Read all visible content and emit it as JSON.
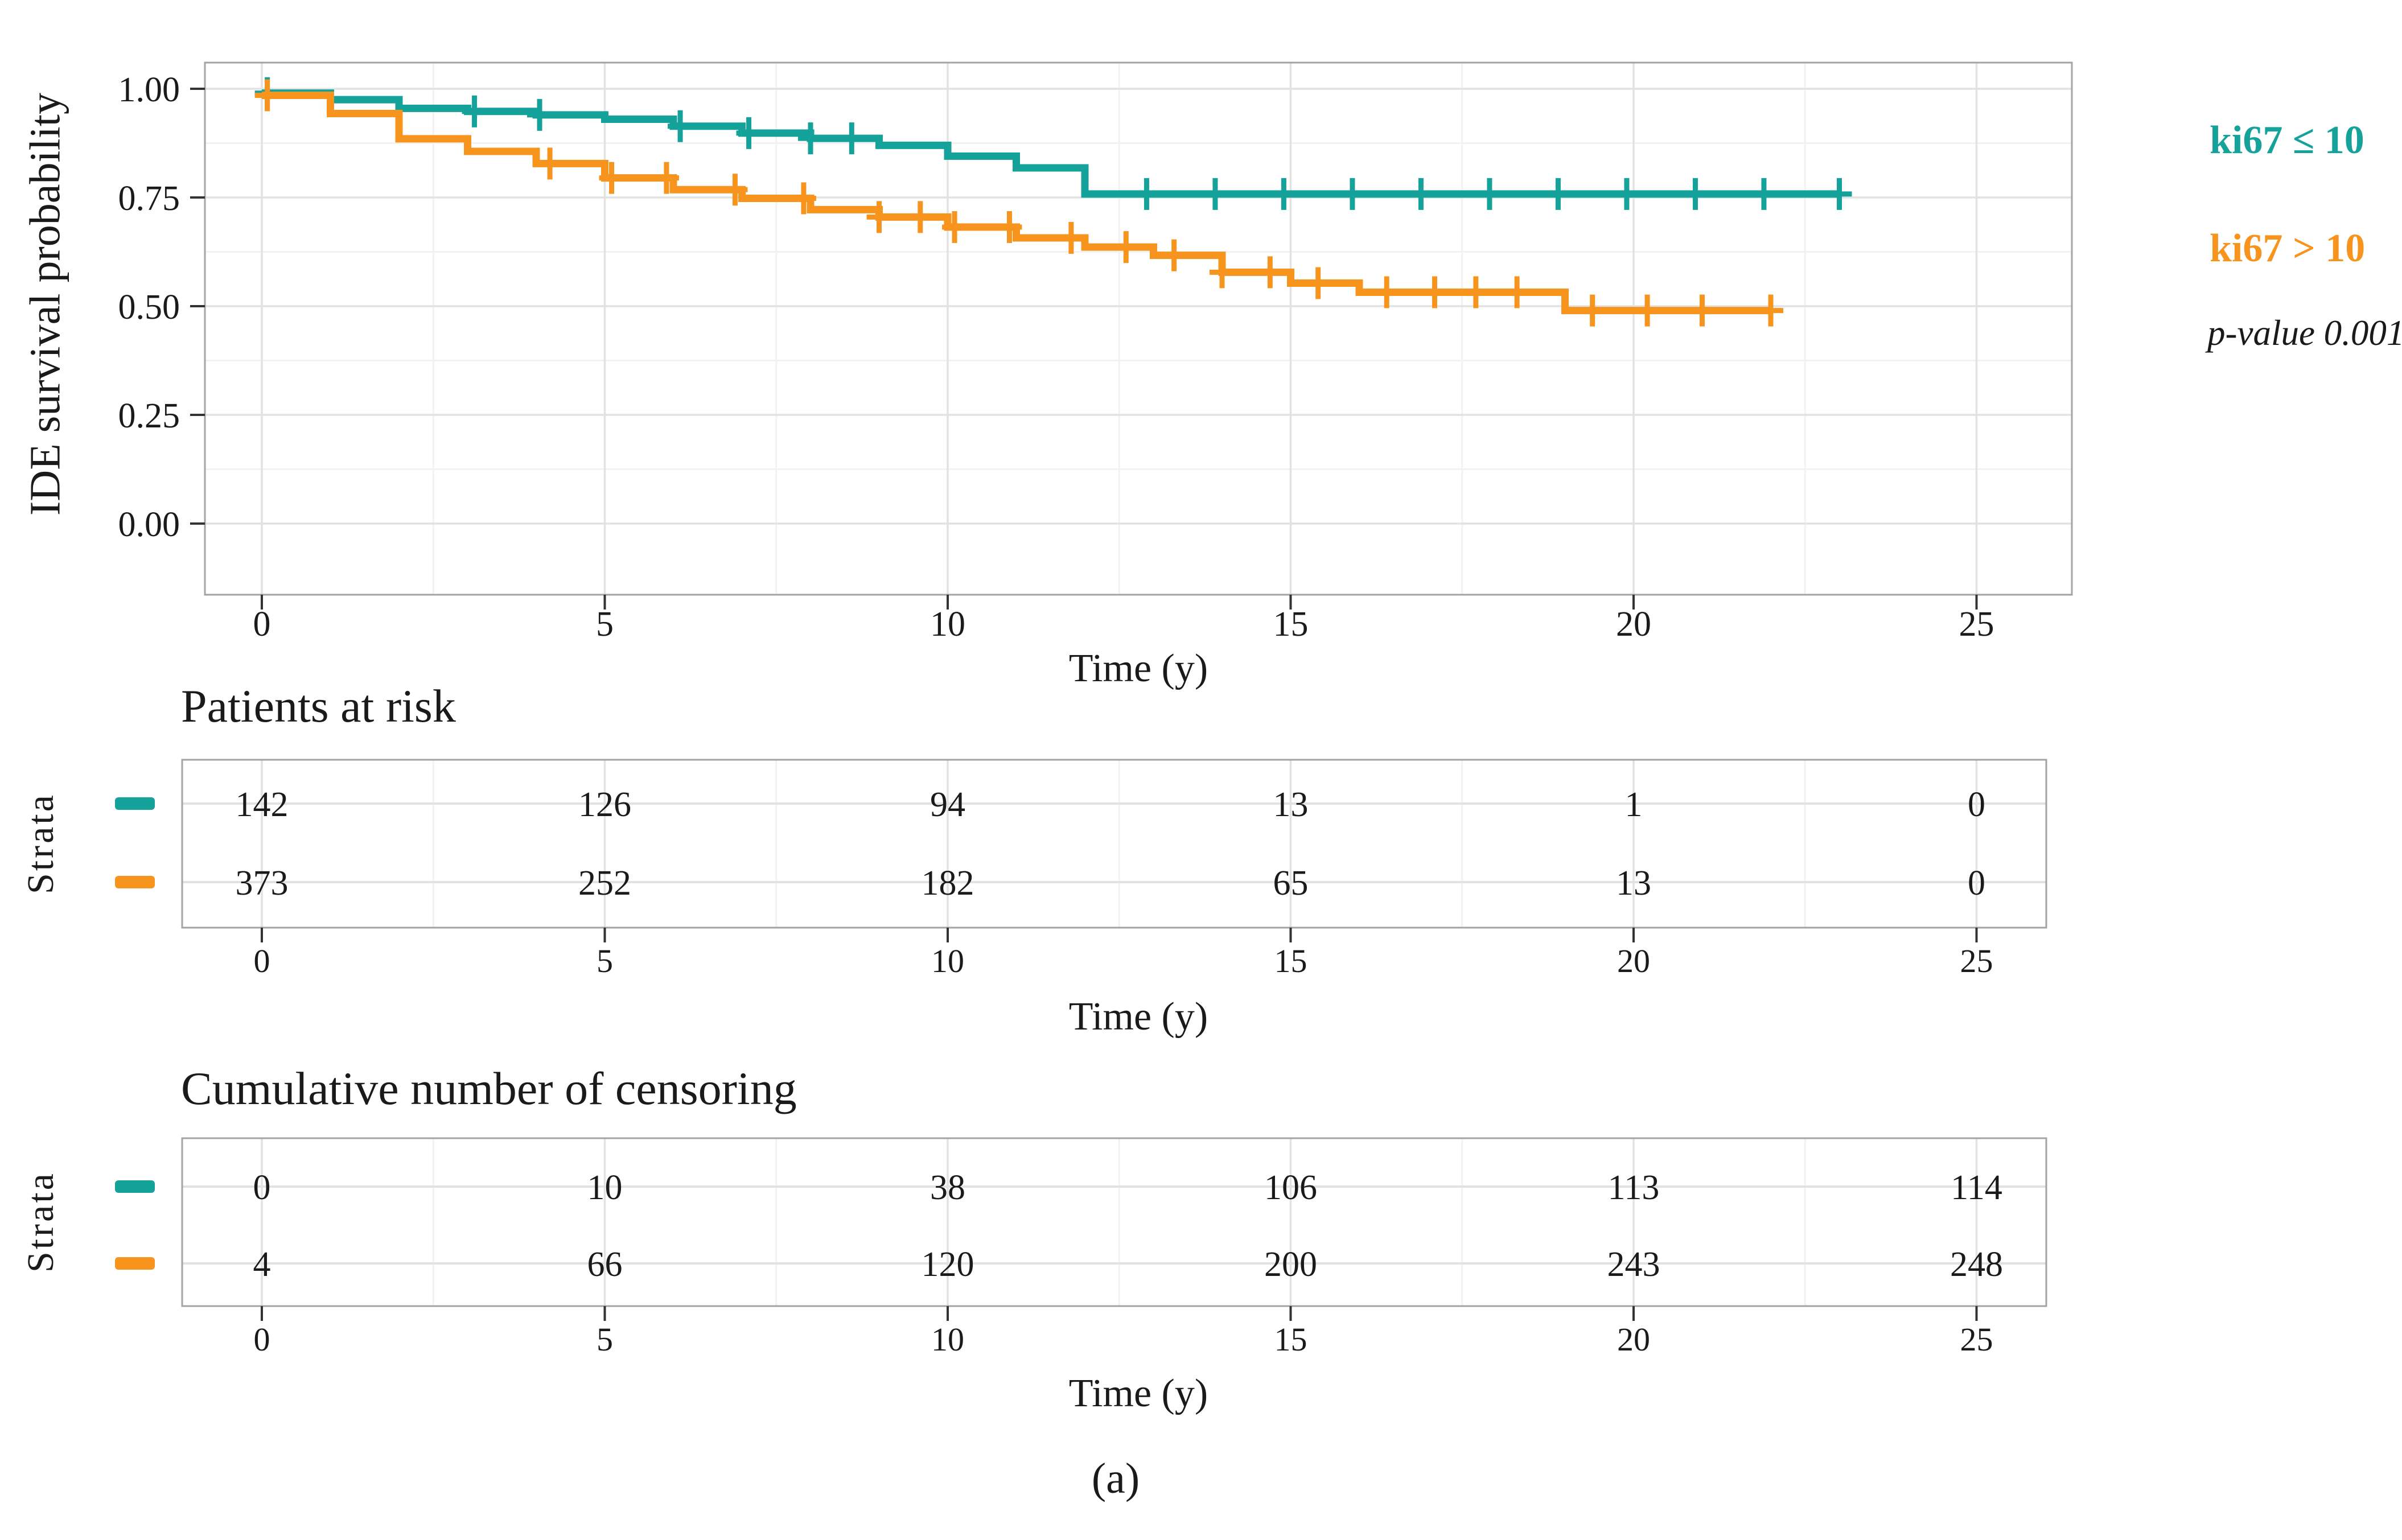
{
  "caption": "(a)",
  "legend": {
    "items": [
      {
        "label": "ki67 ≤ 10",
        "color": "#14A29A"
      },
      {
        "label": "ki67 > 10",
        "color": "#F7941E"
      }
    ],
    "p_value": "p-value 0.001"
  },
  "chart_data": {
    "type": "line",
    "subtype": "kaplan-meier-step",
    "title": "",
    "xlabel": "Time (y)",
    "ylabel": "IDE survival probability",
    "xlim": [
      -0.85,
      26.4
    ],
    "ylim": [
      0,
      1
    ],
    "grid": true,
    "legend_position": "right",
    "x_ticks": [
      0,
      5,
      10,
      15,
      20,
      25
    ],
    "x_minor_ticks": [
      2.5,
      7.5,
      12.5,
      17.5,
      22.5
    ],
    "y_ticks": [
      0,
      0.25,
      0.5,
      0.75,
      1
    ],
    "y_tick_labels": [
      "0.00",
      "0.25",
      "0.50",
      "0.75",
      "1.00"
    ],
    "y_minor_ticks": [
      0.125,
      0.375,
      0.625,
      0.875
    ],
    "p_value_annotation": "p-value 0.001",
    "series": [
      {
        "name": "ki67 ≤ 10",
        "color": "#14A29A",
        "end_time": 23,
        "steps": [
          [
            0,
            0.99
          ],
          [
            1,
            0.975
          ],
          [
            2,
            0.955
          ],
          [
            3,
            0.948
          ],
          [
            4,
            0.94
          ],
          [
            5,
            0.93
          ],
          [
            6,
            0.914
          ],
          [
            7,
            0.898
          ],
          [
            8,
            0.886
          ],
          [
            9,
            0.87
          ],
          [
            10,
            0.845
          ],
          [
            11,
            0.818
          ],
          [
            12,
            0.758
          ]
        ],
        "censor_times": [
          0.08,
          3.1,
          4.05,
          6.1,
          7.1,
          8.0,
          8.6,
          12.9,
          13.9,
          14.9,
          15.9,
          16.9,
          17.9,
          18.9,
          19.9,
          20.9,
          21.9,
          23
        ]
      },
      {
        "name": "ki67 > 10",
        "color": "#F7941E",
        "end_time": 22,
        "steps": [
          [
            0,
            0.985
          ],
          [
            1,
            0.943
          ],
          [
            2,
            0.885
          ],
          [
            3,
            0.856
          ],
          [
            4,
            0.828
          ],
          [
            5,
            0.795
          ],
          [
            6,
            0.768
          ],
          [
            7,
            0.748
          ],
          [
            8,
            0.722
          ],
          [
            9,
            0.705
          ],
          [
            10,
            0.682
          ],
          [
            11,
            0.657
          ],
          [
            12,
            0.636
          ],
          [
            13,
            0.617
          ],
          [
            14,
            0.578
          ],
          [
            15,
            0.553
          ],
          [
            16,
            0.532
          ],
          [
            19,
            0.49
          ]
        ],
        "censor_times": [
          0.08,
          4.2,
          5.1,
          5.9,
          6.9,
          7.9,
          9.0,
          9.6,
          10.1,
          10.9,
          11.8,
          12.6,
          13.3,
          14.0,
          14.7,
          15.4,
          16.4,
          17.1,
          17.7,
          18.3,
          19.4,
          20.2,
          21.0,
          22.0
        ]
      }
    ],
    "risk_table": {
      "title": "Patients at risk",
      "ylabel": "Strata",
      "xlabel": "Time (y)",
      "times": [
        0,
        5,
        10,
        15,
        20,
        25
      ],
      "rows": [
        {
          "name": "ki67 ≤ 10",
          "color": "#14A29A",
          "values": [
            142,
            126,
            94,
            13,
            1,
            0
          ]
        },
        {
          "name": "ki67 > 10",
          "color": "#F7941E",
          "values": [
            373,
            252,
            182,
            65,
            13,
            0
          ]
        }
      ]
    },
    "censor_table": {
      "title": "Cumulative number of censoring",
      "ylabel": "Strata",
      "xlabel": "Time (y)",
      "times": [
        0,
        5,
        10,
        15,
        20,
        25
      ],
      "rows": [
        {
          "name": "ki67 ≤ 10",
          "color": "#14A29A",
          "values": [
            0,
            10,
            38,
            106,
            113,
            114
          ]
        },
        {
          "name": "ki67 > 10",
          "color": "#F7941E",
          "values": [
            4,
            66,
            120,
            200,
            243,
            248
          ]
        }
      ]
    }
  }
}
